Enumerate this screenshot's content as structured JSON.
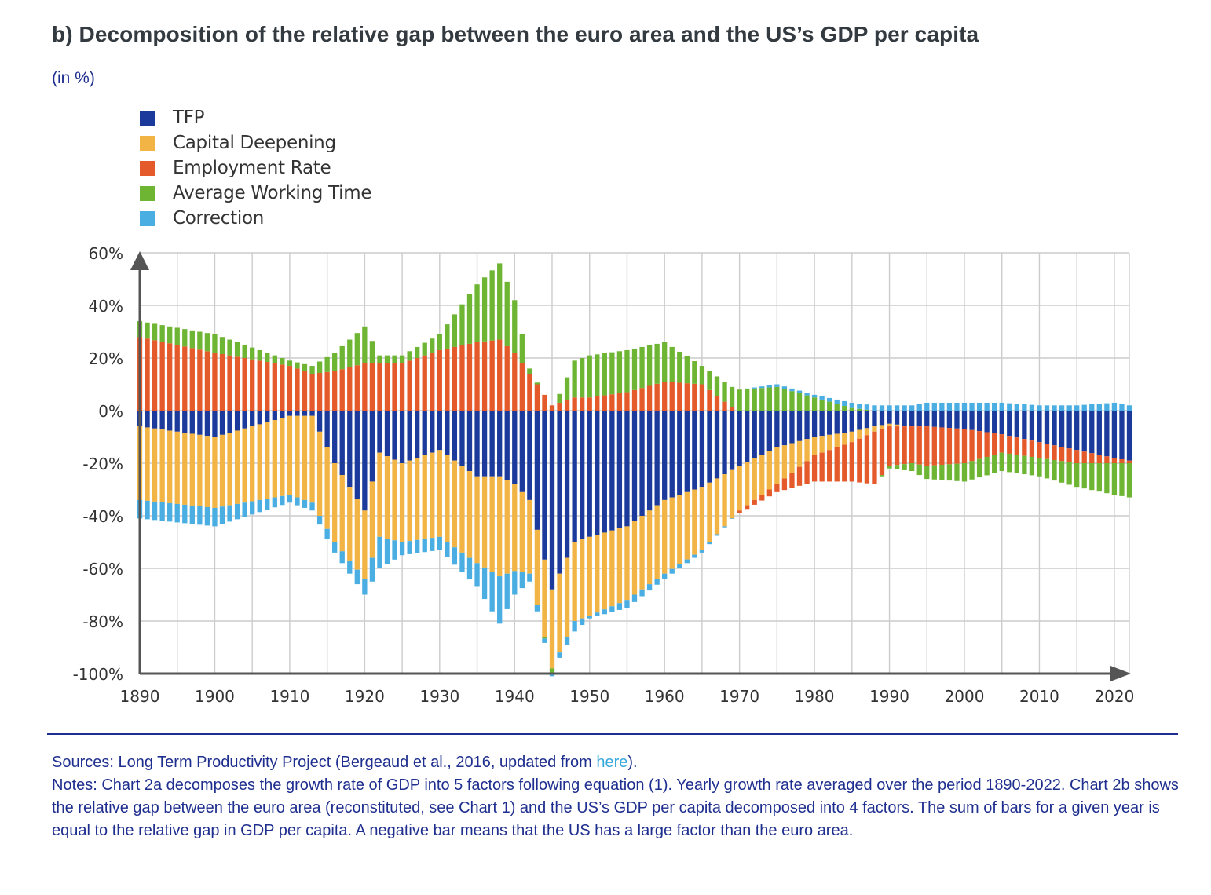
{
  "header": {
    "title": "b) Decomposition of the relative gap between the euro area and the US’s GDP per capita",
    "unit": "(in %)"
  },
  "legend": [
    {
      "label": "TFP",
      "color": "#1b3a9b"
    },
    {
      "label": "Capital Deepening",
      "color": "#f2b444"
    },
    {
      "label": "Employment Rate",
      "color": "#e55a2b"
    },
    {
      "label": "Average Working Time",
      "color": "#6fb534"
    },
    {
      "label": "Correction",
      "color": "#4aaee2"
    }
  ],
  "chart_data": {
    "type": "bar",
    "stacked": true,
    "ylim": [
      -100,
      60
    ],
    "xlim": [
      1890,
      2022
    ],
    "yticks": [
      "60%",
      "40%",
      "20%",
      "0%",
      "-20%",
      "-40%",
      "-60%",
      "-80%",
      "-100%"
    ],
    "xticks": [
      "1890",
      "1900",
      "1910",
      "1920",
      "1930",
      "1940",
      "1950",
      "1960",
      "1970",
      "1980",
      "1990",
      "2000",
      "2010",
      "2020"
    ],
    "grid": true,
    "legend_position": "top-left",
    "series": [
      {
        "name": "TFP",
        "color": "#1b3a9b",
        "x": [
          1890,
          1900,
          1910,
          1913,
          1916,
          1920,
          1922,
          1925,
          1930,
          1935,
          1938,
          1940,
          1942,
          1945,
          1948,
          1950,
          1955,
          1960,
          1965,
          1970,
          1975,
          1980,
          1985,
          1988,
          1990,
          1993,
          1995,
          2000,
          2005,
          2010,
          2015,
          2020,
          2022
        ],
        "y": [
          -6,
          -10,
          -2,
          -2,
          -20,
          -38,
          -16,
          -20,
          -15,
          -25,
          -25,
          -28,
          -34,
          -68,
          -50,
          -48,
          -44,
          -34,
          -29,
          -21,
          -14,
          -10,
          -8,
          -6,
          -5,
          -6,
          -6,
          -7,
          -9,
          -12,
          -15,
          -18,
          -19
        ]
      },
      {
        "name": "Capital Deepening",
        "color": "#f2b444",
        "x": [
          1890,
          1900,
          1910,
          1913,
          1916,
          1920,
          1922,
          1925,
          1930,
          1935,
          1938,
          1940,
          1942,
          1945,
          1948,
          1950,
          1955,
          1960,
          1965,
          1970,
          1975,
          1980,
          1985,
          1988,
          1990,
          1993,
          1995,
          2000,
          2005,
          2010,
          2015,
          2020,
          2022
        ],
        "y": [
          -28,
          -27,
          -30,
          -33,
          -30,
          -26,
          -32,
          -30,
          -33,
          -33,
          -38,
          -33,
          -28,
          -30,
          -30,
          -30,
          -28,
          -28,
          -24,
          -17,
          -14,
          -7,
          -4,
          -2,
          -1,
          0,
          0,
          0,
          0,
          0,
          0,
          0,
          0
        ]
      },
      {
        "name": "Employment Rate",
        "color": "#e55a2b",
        "x": [
          1890,
          1900,
          1910,
          1913,
          1916,
          1920,
          1922,
          1925,
          1930,
          1935,
          1938,
          1940,
          1942,
          1945,
          1948,
          1950,
          1955,
          1960,
          1965,
          1970,
          1975,
          1980,
          1985,
          1988,
          1990,
          1993,
          1995,
          2000,
          2005,
          2010,
          2015,
          2020,
          2022
        ],
        "y": [
          28,
          22,
          17,
          14,
          15,
          18,
          18,
          18,
          23,
          26,
          27,
          22,
          14,
          2,
          5,
          5,
          7,
          11,
          10,
          -1,
          -3,
          -10,
          -15,
          -20,
          -15,
          -14,
          -15,
          -13,
          -7,
          -6,
          -5,
          -2,
          -1
        ]
      },
      {
        "name": "Average Working Time",
        "color": "#6fb534",
        "x": [
          1890,
          1900,
          1910,
          1913,
          1916,
          1920,
          1922,
          1925,
          1930,
          1935,
          1938,
          1940,
          1942,
          1945,
          1948,
          1950,
          1955,
          1960,
          1965,
          1970,
          1975,
          1980,
          1985,
          1988,
          1990,
          1993,
          1995,
          2000,
          2005,
          2010,
          2015,
          2020,
          2022
        ],
        "y": [
          6,
          7,
          2,
          3,
          7,
          14,
          3,
          3,
          6,
          22,
          29,
          20,
          2,
          -2,
          14,
          16,
          16,
          15,
          7,
          8,
          9,
          5,
          1,
          0,
          -1,
          -3,
          -5,
          -7,
          -7,
          -7,
          -9,
          -12,
          -13
        ]
      },
      {
        "name": "Correction",
        "color": "#4aaee2",
        "x": [
          1890,
          1900,
          1910,
          1913,
          1916,
          1920,
          1922,
          1925,
          1930,
          1935,
          1938,
          1940,
          1942,
          1945,
          1948,
          1950,
          1955,
          1960,
          1965,
          1970,
          1975,
          1980,
          1985,
          1988,
          1990,
          1993,
          1995,
          2000,
          2005,
          2010,
          2015,
          2020,
          2022
        ],
        "y": [
          -7,
          -7,
          -3,
          -3,
          -4,
          -6,
          -12,
          -5,
          -5,
          -9,
          -18,
          -9,
          -3,
          -1,
          -4,
          -1,
          -3,
          -2,
          -1,
          0,
          1,
          1,
          2,
          2,
          2,
          2,
          3,
          3,
          3,
          2,
          2,
          3,
          2
        ]
      }
    ]
  },
  "footer": {
    "sources_prefix": "Sources: Long Term Productivity Project (Bergeaud et al., 2016, updated from ",
    "sources_link": "here",
    "sources_suffix": ").",
    "notes": "Notes: Chart 2a decomposes the growth rate of GDP into 5 factors following equation (1). Yearly growth rate averaged over the period 1890-2022. Chart 2b shows the relative gap between the euro area (reconstituted, see Chart 1) and the US’s GDP per capita decomposed into 4 factors. The sum of bars for a given year is equal to the relative gap in GDP per capita. A negative bar means that the US has a large factor than the euro area."
  }
}
